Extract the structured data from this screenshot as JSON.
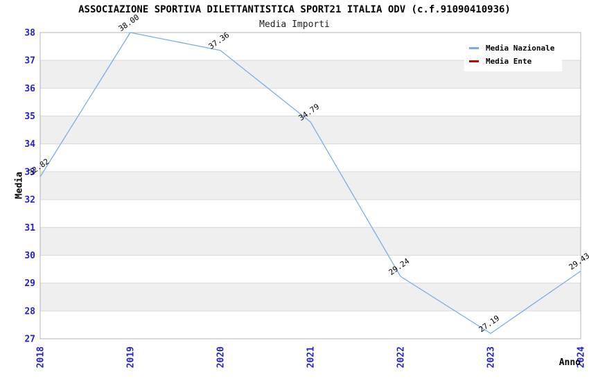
{
  "header": {
    "title": "ASSOCIAZIONE SPORTIVA DILETTANTISTICA SPORT21 ITALIA ODV (c.f.91090410936)",
    "subtitle": "Media Importi"
  },
  "chart_data": {
    "type": "line",
    "title": "ASSOCIAZIONE SPORTIVA DILETTANTISTICA SPORT21 ITALIA ODV (c.f.91090410936)",
    "subtitle": "Media Importi",
    "x": [
      2018,
      2019,
      2020,
      2021,
      2022,
      2023,
      2024
    ],
    "series": [
      {
        "name": "Media Nazionale",
        "color": "#7aade6",
        "values": [
          32.82,
          38.0,
          37.36,
          34.79,
          29.24,
          27.19,
          29.43
        ]
      },
      {
        "name": "Media Ente",
        "color": "#cc0000",
        "values": []
      }
    ],
    "point_label_decimals": 2,
    "xlabel": "Anno",
    "ylabel": "Media",
    "ylim": [
      27,
      38
    ],
    "ytick_step": 1,
    "grid": "horizontal-lines-with-alternating-bands",
    "legend_position": "top-right",
    "colors": {
      "tick_label": "#2222cc",
      "point_label": "#000000",
      "band": "#efefef",
      "gridline": "#d9d9d9",
      "border": "#b3b3b3",
      "background": "#ffffff"
    }
  }
}
